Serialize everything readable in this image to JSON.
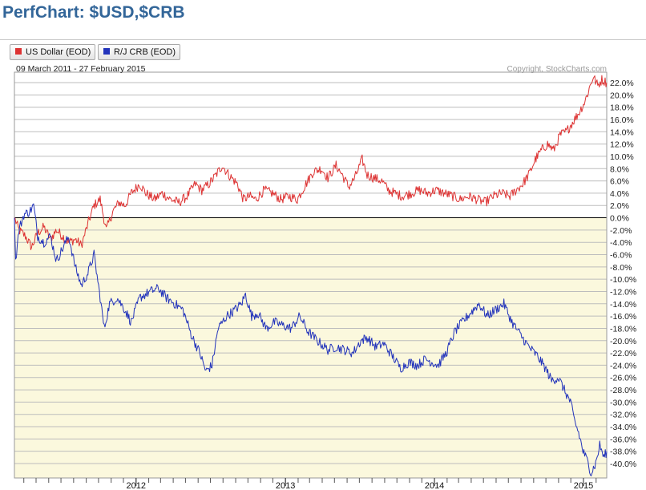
{
  "page": {
    "title": "PerfChart: $USD,$CRB"
  },
  "legend": [
    {
      "label": "US Dollar (EOD)",
      "color": "#dd3333"
    },
    {
      "label": "R/J CRB (EOD)",
      "color": "#2233bb"
    }
  ],
  "chart_info": {
    "date_range": "09 March 2011 - 27 February 2015",
    "copyright": "Copyright, StockCharts.com"
  },
  "chart_data": {
    "type": "line",
    "title": "PerfChart: $USD,$CRB",
    "subtitle": "09 March 2011 - 27 February 2015",
    "xlabel": "",
    "ylabel": "",
    "x_range": [
      "2011-03-09",
      "2015-02-27"
    ],
    "ylim": [
      -42,
      24
    ],
    "y_ticks": [
      22,
      20,
      18,
      16,
      14,
      12,
      10,
      8,
      6,
      4,
      2,
      0,
      -2,
      -4,
      -6,
      -8,
      -10,
      -12,
      -14,
      -16,
      -18,
      -20,
      -22,
      -24,
      -26,
      -28,
      -30,
      -32,
      -34,
      -36,
      -38,
      -40
    ],
    "y_tick_labels": [
      "22.0%",
      "20.0%",
      "18.0%",
      "16.0%",
      "14.0%",
      "12.0%",
      "10.0%",
      "8.0%",
      "6.0%",
      "4.0%",
      "2.0%",
      "0.0%",
      "-2.0%",
      "-4.0%",
      "-6.0%",
      "-8.0%",
      "-10.0%",
      "-12.0%",
      "-14.0%",
      "-16.0%",
      "-18.0%",
      "-20.0%",
      "-22.0%",
      "-24.0%",
      "-26.0%",
      "-28.0%",
      "-30.0%",
      "-32.0%",
      "-34.0%",
      "-36.0%",
      "-38.0%",
      "-40.0%"
    ],
    "x_tick_labels": [
      {
        "label": "2012",
        "date": "2012-01-01"
      },
      {
        "label": "2013",
        "date": "2013-01-01"
      },
      {
        "label": "2014",
        "date": "2014-01-01"
      },
      {
        "label": "2015",
        "date": "2015-01-01"
      }
    ],
    "grid": true,
    "legend_position": "top-left",
    "negative_region_color": "#fbf8dd",
    "series": [
      {
        "name": "US Dollar (EOD)",
        "color": "#dd3333",
        "points": [
          [
            "2011-03-09",
            0
          ],
          [
            "2011-03-20",
            -2.0
          ],
          [
            "2011-04-05",
            -3.0
          ],
          [
            "2011-04-20",
            -4.8
          ],
          [
            "2011-05-05",
            -2.5
          ],
          [
            "2011-05-20",
            -1.5
          ],
          [
            "2011-06-05",
            -3.5
          ],
          [
            "2011-06-20",
            -2.0
          ],
          [
            "2011-07-05",
            -3.0
          ],
          [
            "2011-07-20",
            -4.0
          ],
          [
            "2011-08-05",
            -3.5
          ],
          [
            "2011-08-20",
            -4.5
          ],
          [
            "2011-09-05",
            -1.0
          ],
          [
            "2011-09-20",
            2.0
          ],
          [
            "2011-10-05",
            3.0
          ],
          [
            "2011-10-20",
            -2.0
          ],
          [
            "2011-11-05",
            1.0
          ],
          [
            "2011-11-20",
            2.5
          ],
          [
            "2011-12-05",
            2.0
          ],
          [
            "2011-12-20",
            4.0
          ],
          [
            "2012-01-10",
            5.5
          ],
          [
            "2012-01-25",
            4.0
          ],
          [
            "2012-02-15",
            3.0
          ],
          [
            "2012-03-05",
            4.0
          ],
          [
            "2012-03-25",
            3.0
          ],
          [
            "2012-04-15",
            2.5
          ],
          [
            "2012-05-05",
            3.5
          ],
          [
            "2012-05-25",
            5.5
          ],
          [
            "2012-06-10",
            4.5
          ],
          [
            "2012-06-28",
            5.5
          ],
          [
            "2012-07-15",
            7.0
          ],
          [
            "2012-07-30",
            8.5
          ],
          [
            "2012-08-15",
            7.0
          ],
          [
            "2012-09-05",
            5.5
          ],
          [
            "2012-09-20",
            3.0
          ],
          [
            "2012-10-05",
            3.5
          ],
          [
            "2012-10-20",
            3.0
          ],
          [
            "2012-11-10",
            4.5
          ],
          [
            "2012-11-30",
            4.0
          ],
          [
            "2012-12-20",
            3.0
          ],
          [
            "2013-01-10",
            3.5
          ],
          [
            "2013-01-30",
            3.0
          ],
          [
            "2013-02-20",
            5.5
          ],
          [
            "2013-03-10",
            7.5
          ],
          [
            "2013-03-30",
            8.0
          ],
          [
            "2013-04-15",
            6.5
          ],
          [
            "2013-05-05",
            8.5
          ],
          [
            "2013-05-20",
            7.0
          ],
          [
            "2013-06-05",
            5.0
          ],
          [
            "2013-06-20",
            6.5
          ],
          [
            "2013-07-08",
            9.5
          ],
          [
            "2013-07-20",
            7.0
          ],
          [
            "2013-08-05",
            6.5
          ],
          [
            "2013-08-25",
            6.0
          ],
          [
            "2013-09-10",
            4.5
          ],
          [
            "2013-09-25",
            4.0
          ],
          [
            "2013-10-15",
            3.5
          ],
          [
            "2013-11-05",
            4.0
          ],
          [
            "2013-11-25",
            4.5
          ],
          [
            "2013-12-15",
            4.0
          ],
          [
            "2014-01-05",
            4.5
          ],
          [
            "2014-01-25",
            4.0
          ],
          [
            "2014-02-15",
            3.5
          ],
          [
            "2014-03-05",
            3.0
          ],
          [
            "2014-03-25",
            3.5
          ],
          [
            "2014-04-15",
            3.0
          ],
          [
            "2014-05-05",
            2.5
          ],
          [
            "2014-05-25",
            3.5
          ],
          [
            "2014-06-15",
            4.0
          ],
          [
            "2014-07-05",
            3.5
          ],
          [
            "2014-07-20",
            4.5
          ],
          [
            "2014-08-05",
            5.5
          ],
          [
            "2014-08-20",
            7.0
          ],
          [
            "2014-09-05",
            9.5
          ],
          [
            "2014-09-20",
            11.0
          ],
          [
            "2014-10-05",
            12.0
          ],
          [
            "2014-10-20",
            11.0
          ],
          [
            "2014-11-05",
            13.5
          ],
          [
            "2014-11-20",
            14.0
          ],
          [
            "2014-12-05",
            15.5
          ],
          [
            "2014-12-20",
            17.0
          ],
          [
            "2015-01-05",
            19.0
          ],
          [
            "2015-01-15",
            21.0
          ],
          [
            "2015-01-25",
            23.0
          ],
          [
            "2015-02-05",
            21.5
          ],
          [
            "2015-02-15",
            22.5
          ],
          [
            "2015-02-27",
            22.0
          ]
        ]
      },
      {
        "name": "R/J CRB (EOD)",
        "color": "#2233bb",
        "points": [
          [
            "2011-03-09",
            0
          ],
          [
            "2011-03-12",
            -7.0
          ],
          [
            "2011-03-20",
            -2.0
          ],
          [
            "2011-04-01",
            0.5
          ],
          [
            "2011-04-15",
            1.0
          ],
          [
            "2011-04-25",
            2.0
          ],
          [
            "2011-05-05",
            -3.0
          ],
          [
            "2011-05-20",
            -4.0
          ],
          [
            "2011-06-05",
            -3.0
          ],
          [
            "2011-06-20",
            -7.0
          ],
          [
            "2011-07-05",
            -5.0
          ],
          [
            "2011-07-20",
            -3.0
          ],
          [
            "2011-08-05",
            -8.0
          ],
          [
            "2011-08-20",
            -11.0
          ],
          [
            "2011-09-05",
            -9.0
          ],
          [
            "2011-09-20",
            -6.0
          ],
          [
            "2011-10-05",
            -13.0
          ],
          [
            "2011-10-15",
            -18.0
          ],
          [
            "2011-10-28",
            -14.0
          ],
          [
            "2011-11-15",
            -13.0
          ],
          [
            "2011-12-05",
            -15.0
          ],
          [
            "2011-12-20",
            -17.0
          ],
          [
            "2012-01-10",
            -13.0
          ],
          [
            "2012-02-05",
            -12.0
          ],
          [
            "2012-02-25",
            -11.5
          ],
          [
            "2012-03-15",
            -13.0
          ],
          [
            "2012-04-05",
            -14.0
          ],
          [
            "2012-04-25",
            -15.0
          ],
          [
            "2012-05-15",
            -19.0
          ],
          [
            "2012-06-05",
            -22.0
          ],
          [
            "2012-06-20",
            -25.0
          ],
          [
            "2012-07-05",
            -24.0
          ],
          [
            "2012-07-20",
            -18.0
          ],
          [
            "2012-08-10",
            -16.0
          ],
          [
            "2012-08-30",
            -15.0
          ],
          [
            "2012-09-15",
            -14.0
          ],
          [
            "2012-09-25",
            -12.5
          ],
          [
            "2012-10-10",
            -16.0
          ],
          [
            "2012-10-25",
            -15.5
          ],
          [
            "2012-11-15",
            -18.0
          ],
          [
            "2012-12-05",
            -17.0
          ],
          [
            "2012-12-25",
            -17.5
          ],
          [
            "2013-01-15",
            -18.0
          ],
          [
            "2013-02-05",
            -16.0
          ],
          [
            "2013-02-25",
            -18.5
          ],
          [
            "2013-03-20",
            -20.0
          ],
          [
            "2013-04-15",
            -21.5
          ],
          [
            "2013-05-05",
            -21.0
          ],
          [
            "2013-05-25",
            -21.5
          ],
          [
            "2013-06-15",
            -22.0
          ],
          [
            "2013-07-05",
            -20.0
          ],
          [
            "2013-07-20",
            -19.5
          ],
          [
            "2013-08-10",
            -21.0
          ],
          [
            "2013-08-30",
            -20.5
          ],
          [
            "2013-09-20",
            -22.5
          ],
          [
            "2013-10-10",
            -24.5
          ],
          [
            "2013-10-30",
            -23.5
          ],
          [
            "2013-11-20",
            -24.0
          ],
          [
            "2013-12-10",
            -23.0
          ],
          [
            "2014-01-10",
            -24.0
          ],
          [
            "2014-01-30",
            -22.0
          ],
          [
            "2014-02-20",
            -18.5
          ],
          [
            "2014-03-10",
            -17.0
          ],
          [
            "2014-03-30",
            -15.5
          ],
          [
            "2014-04-20",
            -14.0
          ],
          [
            "2014-05-10",
            -16.0
          ],
          [
            "2014-05-30",
            -15.0
          ],
          [
            "2014-06-20",
            -14.0
          ],
          [
            "2014-07-10",
            -17.0
          ],
          [
            "2014-07-30",
            -19.0
          ],
          [
            "2014-08-20",
            -21.0
          ],
          [
            "2014-09-10",
            -22.5
          ],
          [
            "2014-09-30",
            -24.5
          ],
          [
            "2014-10-15",
            -26.5
          ],
          [
            "2014-10-31",
            -26.0
          ],
          [
            "2014-11-15",
            -28.0
          ],
          [
            "2014-11-30",
            -30.0
          ],
          [
            "2014-12-10",
            -33.0
          ],
          [
            "2014-12-20",
            -35.0
          ],
          [
            "2014-12-31",
            -38.0
          ],
          [
            "2015-01-10",
            -39.5
          ],
          [
            "2015-01-20",
            -41.5
          ],
          [
            "2015-01-31",
            -40.0
          ],
          [
            "2015-02-10",
            -37.0
          ],
          [
            "2015-02-20",
            -39.0
          ],
          [
            "2015-02-27",
            -38.0
          ]
        ]
      }
    ]
  }
}
